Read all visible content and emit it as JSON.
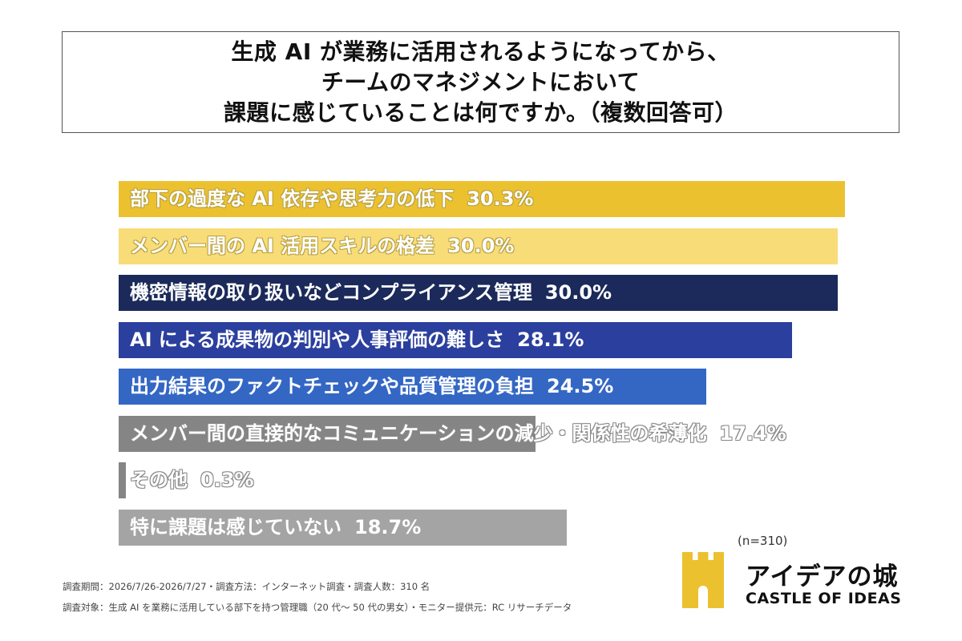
{
  "title": {
    "line1": "生成 AI が業務に活用されるようになってから、",
    "line2": "チームのマネジメントにおいて",
    "line3": "課題に感じていることは何ですか。（複数回答可）"
  },
  "chart_data": {
    "type": "bar",
    "orientation": "horizontal",
    "categories": [
      "部下の過度な AI 依存や思考力の低下",
      "メンバー間の AI 活用スキルの格差",
      "機密情報の取り扱いなどコンプライアンス管理",
      "AI による成果物の判別や人事評価の難しさ",
      "出力結果のファクトチェックや品質管理の負担",
      "メンバー間の直接的なコミュニケーションの減少・関係性の希薄化",
      "その他",
      "特に課題は感じていない"
    ],
    "values": [
      30.3,
      30.0,
      30.0,
      28.1,
      24.5,
      17.4,
      0.3,
      18.7
    ],
    "value_labels": [
      "30.3%",
      "30.0%",
      "30.0%",
      "28.1%",
      "24.5%",
      "17.4%",
      "0.3%",
      "18.7%"
    ],
    "bar_colors": [
      "#ecc12f",
      "#f8dc78",
      "#1b2a5a",
      "#2b3f9e",
      "#3467c4",
      "#858585",
      "#858585",
      "#a4a4a4"
    ],
    "label_styles": [
      "light",
      "light",
      "dark",
      "dark",
      "dark",
      "mid",
      "mid",
      "dark"
    ],
    "unit": "%",
    "xlim": [
      0,
      30.3
    ],
    "grid": false,
    "legend": "none"
  },
  "sample_size": "(n=310)",
  "footnotes": {
    "line1": "調査期間：2026/7/26-2026/7/27・調査方法：インターネット調査・調査人数：310 名",
    "line2": "調査対象：生成 AI を業務に活用している部下を持つ管理職（20 代〜 50 代の男女）・モニター提供元：RC リサーチデータ"
  },
  "logo": {
    "jp": "アイデアの城",
    "en": "CASTLE OF IDEAS",
    "color": "#ecc12f"
  }
}
